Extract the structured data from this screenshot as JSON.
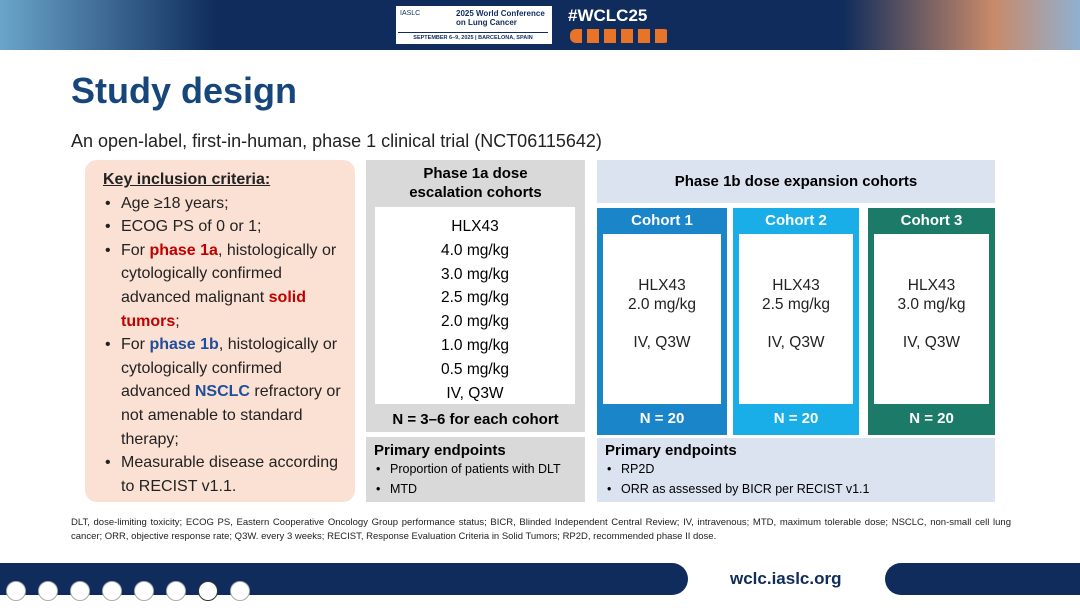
{
  "header": {
    "org": "IASLC",
    "conference_line1": "2025 World Conference",
    "conference_line2": "on Lung Cancer",
    "dates": "SEPTEMBER 6–9, 2025 | BARCELONA, SPAIN",
    "hashtag": "#WCLC25"
  },
  "title": "Study design",
  "subtitle": "An open-label, first-in-human, phase 1 clinical trial (NCT06115642)",
  "inclusion": {
    "heading": "Key inclusion criteria:",
    "items": [
      [
        {
          "text": "Age ≥18 years;"
        }
      ],
      [
        {
          "text": "ECOG PS of 0 or 1;"
        }
      ],
      [
        {
          "text": "For "
        },
        {
          "text": "phase 1a",
          "emphasis": "red"
        },
        {
          "text": ", histologically or cytologically confirmed advanced malignant "
        },
        {
          "text": "solid tumors",
          "emphasis": "red"
        },
        {
          "text": ";"
        }
      ],
      [
        {
          "text": "For "
        },
        {
          "text": "phase 1b",
          "emphasis": "blue"
        },
        {
          "text": ", histologically or cytologically confirmed advanced "
        },
        {
          "text": "NSCLC",
          "emphasis": "blue"
        },
        {
          "text": " refractory or not amenable to standard therapy;"
        }
      ],
      [
        {
          "text": "Measurable disease according to RECIST v1.1."
        }
      ]
    ]
  },
  "phase1a": {
    "header": "Phase 1a dose escalation cohorts",
    "lines": [
      "HLX43",
      "4.0 mg/kg",
      "3.0 mg/kg",
      "2.5 mg/kg",
      "2.0 mg/kg",
      "1.0 mg/kg",
      "0.5 mg/kg",
      "IV, Q3W"
    ],
    "n": "N = 3–6 for each cohort",
    "endpoints": {
      "heading": "Primary endpoints",
      "items": [
        "Proportion of patients with DLT",
        "MTD"
      ]
    }
  },
  "phase1b": {
    "header": "Phase 1b dose expansion cohorts",
    "cohorts": [
      {
        "name": "Cohort 1",
        "drug": "HLX43",
        "dose": "2.0 mg/kg",
        "schedule": "IV, Q3W",
        "n": "N = 20",
        "color": "#1a85c9"
      },
      {
        "name": "Cohort 2",
        "drug": "HLX43",
        "dose": "2.5 mg/kg",
        "schedule": "IV, Q3W",
        "n": "N = 20",
        "color": "#19aee8"
      },
      {
        "name": "Cohort 3",
        "drug": "HLX43",
        "dose": "3.0 mg/kg",
        "schedule": "IV, Q3W",
        "n": "N = 20",
        "color": "#1c7a68"
      }
    ],
    "endpoints": {
      "heading": "Primary endpoints",
      "items": [
        "RP2D",
        "ORR as assessed by BICR per RECIST v1.1"
      ]
    }
  },
  "footnote": "DLT, dose-limiting toxicity; ECOG PS, Eastern Cooperative Oncology Group performance status; BICR, Blinded Independent Central Review; IV, intravenous; MTD, maximum tolerable dose; NSCLC, non-small cell lung cancer; ORR, objective response rate; Q3W. every 3 weeks; RECIST, Response Evaluation Criteria in Solid Tumors; RP2D, recommended phase II dose.",
  "footer": {
    "url": "wclc.iaslc.org"
  }
}
